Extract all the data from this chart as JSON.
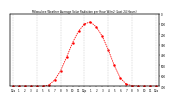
{
  "title": "Milwaukee Weather Average Solar Radiation per Hour W/m2 (Last 24 Hours)",
  "x_labels": [
    "12a",
    "1",
    "2",
    "3",
    "4",
    "5",
    "6",
    "7",
    "8",
    "9",
    "10",
    "11",
    "12p",
    "1",
    "2",
    "3",
    "4",
    "5",
    "6",
    "7",
    "8",
    "9",
    "10",
    "11",
    "12a"
  ],
  "hours": [
    0,
    1,
    2,
    3,
    4,
    5,
    6,
    7,
    8,
    9,
    10,
    11,
    12,
    13,
    14,
    15,
    16,
    17,
    18,
    19,
    20,
    21,
    22,
    23,
    24
  ],
  "values": [
    0,
    0,
    0,
    0,
    0,
    0,
    10,
    60,
    150,
    280,
    420,
    530,
    600,
    620,
    570,
    480,
    350,
    200,
    80,
    20,
    5,
    0,
    0,
    0,
    0
  ],
  "line_color": "#ff0000",
  "bg_color": "#ffffff",
  "plot_bg": "#ffffff",
  "grid_color": "#aaaaaa",
  "text_color": "#000000",
  "ylim": [
    0,
    700
  ],
  "yticks": [
    0,
    100,
    200,
    300,
    400,
    500,
    600,
    700
  ],
  "ylabel_right": [
    "700",
    "600",
    "500",
    "400",
    "300",
    "200",
    "100",
    "0"
  ],
  "grid_x_positions": [
    0,
    4,
    8,
    12,
    16,
    20,
    24
  ],
  "marker_size": 1.5,
  "line_width": 0.6
}
